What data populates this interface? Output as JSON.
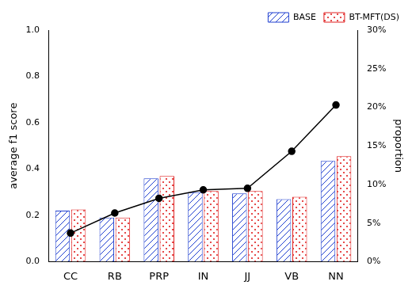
{
  "chart_data": {
    "type": "bar",
    "categories": [
      "CC",
      "RB",
      "PRP",
      "IN",
      "JJ",
      "VB",
      "NN"
    ],
    "series": [
      {
        "name": "BASE",
        "type": "bar",
        "color": "#1f3fd0",
        "values": [
          0.22,
          0.19,
          0.36,
          0.3,
          0.295,
          0.27,
          0.435
        ]
      },
      {
        "name": "BT-MFT(DS)",
        "type": "bar",
        "color": "#e02020",
        "values": [
          0.225,
          0.19,
          0.37,
          0.305,
          0.305,
          0.28,
          0.455
        ]
      },
      {
        "type": "line",
        "axis": "y2",
        "color": "#000000",
        "marker": "circle",
        "line_style": "solid",
        "values": [
          3.7,
          6.3,
          8.2,
          9.3,
          9.5,
          14.3,
          20.3
        ]
      }
    ],
    "ylabel": "average f1 score",
    "y2label": "proportion",
    "ylim": [
      0,
      1
    ],
    "yticks": [
      {
        "value": 0,
        "label": "0.0"
      },
      0.2,
      0.4,
      0.6,
      0.8,
      {
        "value": 1,
        "label": "1.0"
      }
    ],
    "y2lim": [
      0,
      30
    ],
    "y2ticks": [
      {
        "value": 0,
        "label": "0%"
      },
      {
        "value": 5,
        "label": "5%"
      },
      {
        "value": 10,
        "label": "10%"
      },
      {
        "value": 15,
        "label": "15%"
      },
      {
        "value": 20,
        "label": "20%"
      },
      {
        "value": 25,
        "label": "25%"
      },
      {
        "value": 30,
        "label": "30%"
      }
    ],
    "grid": false,
    "legend": "upper right"
  }
}
